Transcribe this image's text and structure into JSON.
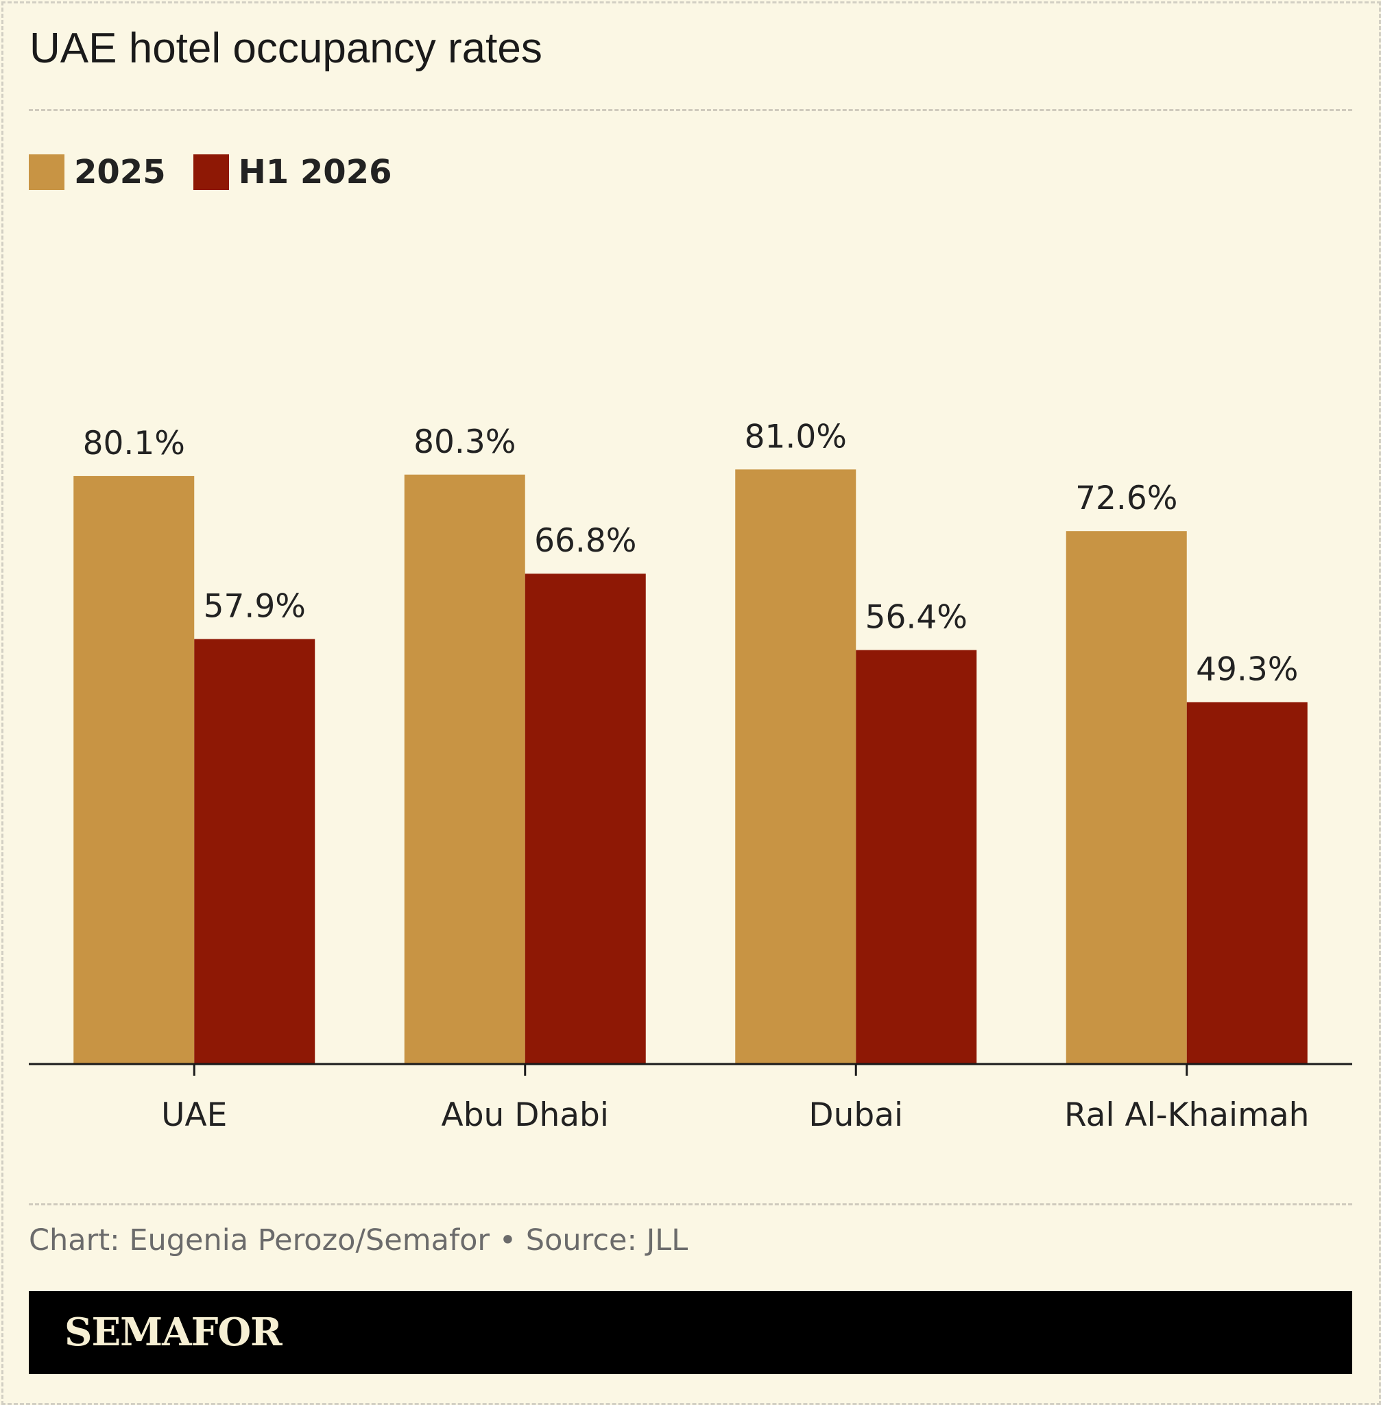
{
  "title": "UAE hotel occupancy rates",
  "legend": [
    {
      "label": "2025",
      "color": "#c89444"
    },
    {
      "label": "H1 2026",
      "color": "#8e1805"
    }
  ],
  "credit": "Chart: Eugenia Perozo/Semafor • Source: JLL",
  "brand": "SEMAFOR",
  "colors": {
    "background": "#fbf7e4",
    "series_2025": "#c89444",
    "series_h1_2026": "#8e1805",
    "axis": "#1a1a1a"
  },
  "chart_data": {
    "type": "bar",
    "title": "UAE hotel occupancy rates",
    "categories": [
      "UAE",
      "Abu Dhabi",
      "Dubai",
      "Ral Al-Khaimah"
    ],
    "series": [
      {
        "name": "2025",
        "values": [
          80.1,
          80.3,
          81.0,
          72.6
        ],
        "labels": [
          "80.1%",
          "80.3%",
          "81.0%",
          "72.6%"
        ]
      },
      {
        "name": "H1 2026",
        "values": [
          57.9,
          66.8,
          56.4,
          49.3
        ],
        "labels": [
          "57.9%",
          "66.8%",
          "56.4%",
          "49.3%"
        ]
      }
    ],
    "xlabel": "",
    "ylabel": "",
    "ylim": [
      0,
      100
    ],
    "grid": false,
    "legend_position": "top-left"
  }
}
